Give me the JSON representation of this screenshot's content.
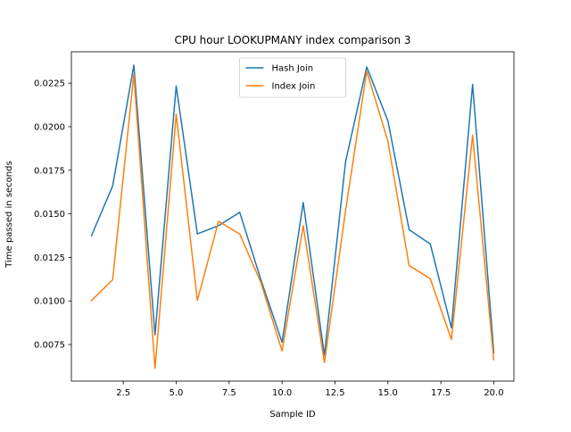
{
  "chart_data": {
    "type": "line",
    "title": "CPU hour LOOKUPMANY index comparison 3",
    "xlabel": "Sample ID",
    "ylabel": "Time passed in seconds",
    "x": [
      1,
      2,
      3,
      4,
      5,
      6,
      7,
      8,
      9,
      10,
      11,
      12,
      13,
      14,
      15,
      16,
      17,
      18,
      19,
      20
    ],
    "xlim": [
      0.05,
      20.95
    ],
    "ylim": [
      0.0054,
      0.0243
    ],
    "xticks": [
      "2.5",
      "5.0",
      "7.5",
      "10.0",
      "12.5",
      "15.0",
      "17.5",
      "20.0"
    ],
    "xtick_values": [
      2.5,
      5.0,
      7.5,
      10.0,
      12.5,
      15.0,
      17.5,
      20.0
    ],
    "yticks": [
      "0.0075",
      "0.0100",
      "0.0125",
      "0.0150",
      "0.0175",
      "0.0200",
      "0.0225"
    ],
    "ytick_values": [
      0.0075,
      0.01,
      0.0125,
      0.015,
      0.0175,
      0.02,
      0.0225
    ],
    "grid": false,
    "legend_position": "upper-center",
    "series": [
      {
        "name": "Hash Join",
        "color": "#1f77b4",
        "values": [
          0.01375,
          0.0166,
          0.02353,
          0.00805,
          0.02234,
          0.01385,
          0.01432,
          0.01509,
          0.01122,
          0.00763,
          0.01565,
          0.00688,
          0.01799,
          0.02343,
          0.02033,
          0.01409,
          0.01327,
          0.00846,
          0.02243,
          0.00704
        ]
      },
      {
        "name": "Index Join",
        "color": "#ff7f0e",
        "values": [
          0.01002,
          0.01122,
          0.02302,
          0.00613,
          0.02072,
          0.01003,
          0.01457,
          0.01384,
          0.01106,
          0.00713,
          0.01432,
          0.00646,
          0.01519,
          0.02318,
          0.01917,
          0.01203,
          0.01128,
          0.00779,
          0.01952,
          0.00663
        ]
      }
    ]
  }
}
